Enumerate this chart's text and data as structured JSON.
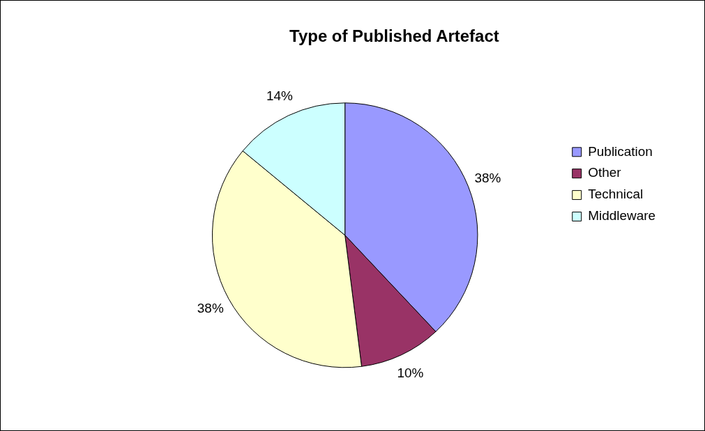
{
  "chart_data": {
    "type": "pie",
    "title": "Type of Published Artefact",
    "categories": [
      "Publication",
      "Other",
      "Technical",
      "Middleware"
    ],
    "values": [
      38,
      10,
      38,
      14
    ],
    "value_labels": [
      "38%",
      "10%",
      "38%",
      "14%"
    ],
    "colors": [
      "#9999ff",
      "#993366",
      "#ffffcc",
      "#ccffff"
    ],
    "legend": "right"
  }
}
